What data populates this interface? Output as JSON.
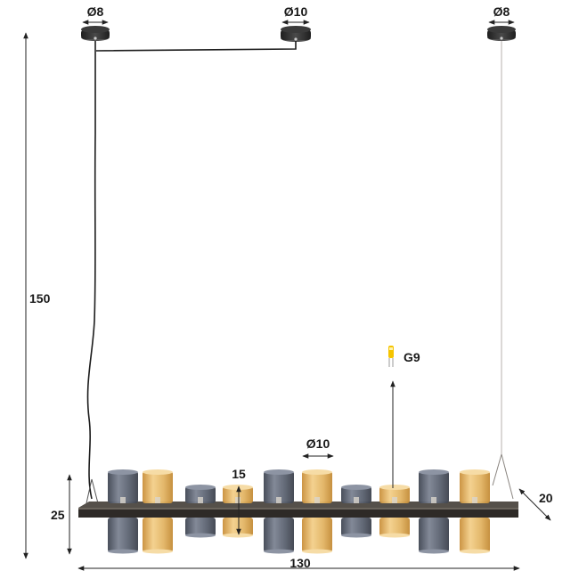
{
  "dimensions": {
    "canopy_left_diameter": "Ø8",
    "canopy_middle_diameter": "Ø10",
    "canopy_right_diameter": "Ø8",
    "total_height": "150",
    "bulb_type": "G9",
    "shade_diameter": "Ø10",
    "shade_height": "15",
    "frame_height": "25",
    "total_width": "130",
    "depth": "20"
  },
  "shades": [
    {
      "color": "smoke",
      "size": "tall"
    },
    {
      "color": "amber",
      "size": "tall"
    },
    {
      "color": "smoke",
      "size": "short"
    },
    {
      "color": "amber",
      "size": "short"
    },
    {
      "color": "smoke",
      "size": "tall"
    },
    {
      "color": "amber",
      "size": "tall"
    },
    {
      "color": "smoke",
      "size": "short"
    },
    {
      "color": "amber",
      "size": "short"
    },
    {
      "color": "smoke",
      "size": "tall"
    },
    {
      "color": "amber",
      "size": "tall"
    }
  ],
  "colors": {
    "smoke_glass": "#5b6270",
    "amber_glass": "#e2b463",
    "frame": "#2e2a27",
    "cable": "#1c1c1c",
    "dimension_line": "#222222",
    "bulb_yellow": "#f5c400"
  }
}
